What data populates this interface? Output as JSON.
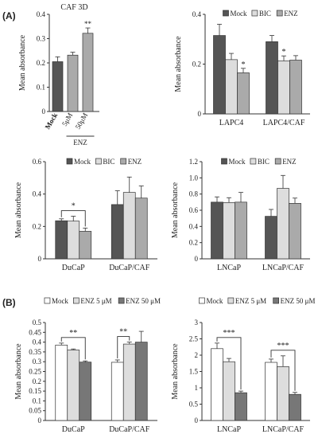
{
  "panel_labels": [
    "(A)",
    "(B)"
  ],
  "chart_data": [
    {
      "type": "bar",
      "title": "CAF 3D",
      "ylabel": "Mean absorbance",
      "ylim": [
        0,
        0.4
      ],
      "yticks": [
        "0",
        "0.1",
        "0.2",
        "0.3",
        "0.4"
      ],
      "categories": [
        "Mock",
        "5μM",
        "50μM"
      ],
      "group_label": "ENZ",
      "series": [
        {
          "values": [
            0.205,
            0.232,
            0.322
          ],
          "errors": [
            0.02,
            0.012,
            0.022
          ],
          "colors": [
            "#555555",
            "#aaaaaa",
            "#aaaaaa"
          ]
        }
      ],
      "annotations": [
        {
          "text": "**",
          "category": 2
        }
      ],
      "grid": false
    },
    {
      "type": "bar",
      "ylabel": "Mean absorbance",
      "ylim": [
        0,
        0.4
      ],
      "yticks": [
        "0",
        "0.2",
        "0.4"
      ],
      "categories": [
        "LAPC4",
        "LAPC4/CAF"
      ],
      "legend": [
        "Mock",
        "BIC",
        "ENZ"
      ],
      "legend_position": "top",
      "series": [
        {
          "name": "Mock",
          "color": "#555555",
          "values": [
            0.315,
            0.29
          ],
          "errors": [
            0.045,
            0.025
          ]
        },
        {
          "name": "BIC",
          "color": "#dddddd",
          "values": [
            0.218,
            0.213
          ],
          "errors": [
            0.025,
            0.02
          ]
        },
        {
          "name": "ENZ",
          "color": "#aaaaaa",
          "values": [
            0.165,
            0.216
          ],
          "errors": [
            0.018,
            0.018
          ]
        }
      ],
      "annotations": [
        {
          "text": "*",
          "group": 0,
          "series": 2
        },
        {
          "text": "*",
          "group": 1,
          "series": 1
        }
      ],
      "grid": false
    },
    {
      "type": "bar",
      "ylabel": "Mean absorbance",
      "ylim": [
        0,
        0.6
      ],
      "yticks": [
        "0",
        "0.2",
        "0.4",
        "0.6"
      ],
      "categories": [
        "DuCaP",
        "DuCaP/CAF"
      ],
      "legend": [
        "Mock",
        "BIC",
        "ENZ"
      ],
      "legend_position": "top",
      "series": [
        {
          "name": "Mock",
          "color": "#555555",
          "values": [
            0.235,
            0.335
          ],
          "errors": [
            0.012,
            0.085
          ]
        },
        {
          "name": "BIC",
          "color": "#dddddd",
          "values": [
            0.233,
            0.41
          ],
          "errors": [
            0.03,
            0.095
          ]
        },
        {
          "name": "ENZ",
          "color": "#aaaaaa",
          "values": [
            0.17,
            0.375
          ],
          "errors": [
            0.02,
            0.075
          ]
        }
      ],
      "annotations": [
        {
          "text": "*",
          "group": 0,
          "from_series": 0,
          "to_series": 2
        }
      ],
      "grid": false
    },
    {
      "type": "bar",
      "ylabel": "Mean absorbance",
      "ylim": [
        0,
        1.2
      ],
      "yticks": [
        "0",
        "0.2",
        "0.4",
        "0.6",
        "0.8",
        "1.0",
        "1.2"
      ],
      "categories": [
        "LNCaP",
        "LNCaP/CAF"
      ],
      "legend": [
        "Mock",
        "BIC",
        "ENZ"
      ],
      "legend_position": "top",
      "series": [
        {
          "name": "Mock",
          "color": "#555555",
          "values": [
            0.7,
            0.525
          ],
          "errors": [
            0.065,
            0.085
          ]
        },
        {
          "name": "BIC",
          "color": "#dddddd",
          "values": [
            0.695,
            0.87
          ],
          "errors": [
            0.06,
            0.16
          ]
        },
        {
          "name": "ENZ",
          "color": "#aaaaaa",
          "values": [
            0.7,
            0.685
          ],
          "errors": [
            0.12,
            0.065
          ]
        }
      ],
      "annotations": [],
      "grid": false
    },
    {
      "type": "bar",
      "ylabel": "Mean absorbance",
      "ylim": [
        0,
        0.5
      ],
      "yticks": [
        "0",
        "0.05",
        "0.1",
        "0.15",
        "0.2",
        "0.25",
        "0.3",
        "0.35",
        "0.4",
        "0.45",
        "0.5"
      ],
      "categories": [
        "DuCaP",
        "DuCaP/CAF"
      ],
      "legend": [
        "Mock",
        "ENZ 5 μM",
        "ENZ 50 μM"
      ],
      "legend_position": "top",
      "series": [
        {
          "name": "Mock",
          "color": "#ffffff",
          "values": [
            0.385,
            0.297
          ],
          "errors": [
            0.01,
            0.012
          ]
        },
        {
          "name": "ENZ 5 μM",
          "color": "#dddddd",
          "values": [
            0.36,
            0.39
          ],
          "errors": [
            0.005,
            0.01
          ]
        },
        {
          "name": "ENZ 50 μM",
          "color": "#777777",
          "values": [
            0.298,
            0.4
          ],
          "errors": [
            0.006,
            0.055
          ]
        }
      ],
      "annotations": [
        {
          "text": "**",
          "group": 0,
          "from_series": 0,
          "to_series": 2
        },
        {
          "text": "**",
          "group": 1,
          "from_series": 0,
          "to_series": 1
        }
      ],
      "grid": false
    },
    {
      "type": "bar",
      "ylabel": "Mean absorbance",
      "ylim": [
        0,
        3
      ],
      "yticks": [
        "0",
        "0.5",
        "1",
        "1.5",
        "2",
        "2.5",
        "3"
      ],
      "categories": [
        "LNCaP",
        "LNCaP/CAF"
      ],
      "legend": [
        "Mock",
        "ENZ 5 μM",
        "ENZ 50 μM"
      ],
      "legend_position": "top",
      "series": [
        {
          "name": "Mock",
          "color": "#ffffff",
          "values": [
            2.2,
            1.78
          ],
          "errors": [
            0.17,
            0.1
          ]
        },
        {
          "name": "ENZ 5 μM",
          "color": "#dddddd",
          "values": [
            1.8,
            1.65
          ],
          "errors": [
            0.1,
            0.33
          ]
        },
        {
          "name": "ENZ 50 μM",
          "color": "#777777",
          "values": [
            0.85,
            0.8
          ],
          "errors": [
            0.05,
            0.06
          ]
        }
      ],
      "annotations": [
        {
          "text": "***",
          "group": 0,
          "from_series": 0,
          "to_series": 2
        },
        {
          "text": "***",
          "group": 1,
          "from_series": 0,
          "to_series": 2
        }
      ],
      "grid": false
    }
  ]
}
